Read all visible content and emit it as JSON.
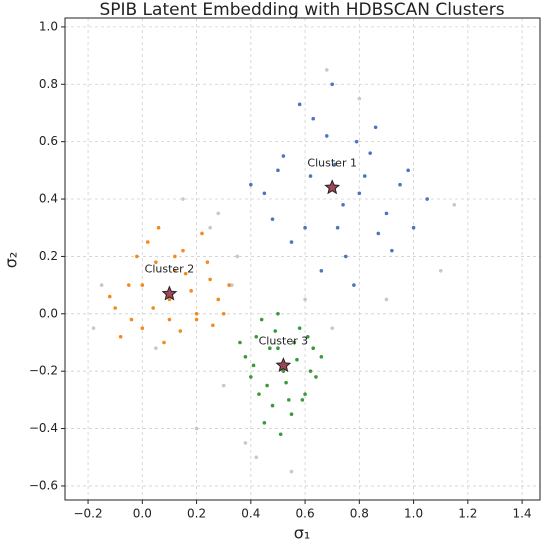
{
  "chart_data": {
    "type": "scatter",
    "title": "SPIB Latent Embedding with HDBSCAN Clusters",
    "xlabel": "σ₁",
    "ylabel": "σ₂",
    "xlim": [
      -0.285,
      1.466
    ],
    "ylim": [
      -0.649,
      1.031
    ],
    "xticks": [
      {
        "value": -0.2,
        "label": "−0.2"
      },
      {
        "value": 0,
        "label": "0.0"
      },
      0.2,
      0.4,
      0.6,
      0.8,
      {
        "value": 1,
        "label": "1.0"
      },
      1.2,
      1.4
    ],
    "yticks": [
      {
        "value": -0.6,
        "label": "−0.6"
      },
      {
        "value": -0.4,
        "label": "−0.4"
      },
      {
        "value": -0.2,
        "label": "−0.2"
      },
      {
        "value": 0,
        "label": "0.0"
      },
      0.2,
      0.4,
      0.6,
      0.8,
      {
        "value": 1,
        "label": "1.0"
      }
    ],
    "grid": true,
    "series": [
      {
        "color": "#c8c8c8",
        "x": [
          -0.15,
          0.35,
          0.3,
          1.1,
          0.25,
          0.7,
          0.2,
          0.9,
          0.38,
          -0.18,
          0.05,
          0.55,
          0.33,
          0.8,
          0.6,
          0.42,
          0.28,
          1.15,
          0.15,
          0.68
        ],
        "y": [
          0.1,
          0.2,
          -0.25,
          0.15,
          0.3,
          -0.05,
          -0.4,
          0.05,
          -0.45,
          -0.05,
          -0.12,
          -0.55,
          0.1,
          0.75,
          0.05,
          -0.5,
          0.35,
          0.38,
          0.4,
          0.85
        ]
      },
      {
        "color": "#4a76c0",
        "x": [
          0.45,
          0.52,
          0.6,
          0.68,
          0.75,
          0.82,
          0.9,
          0.98,
          1.05,
          0.55,
          0.63,
          0.71,
          0.79,
          0.87,
          0.95,
          0.4,
          0.48,
          0.58,
          0.66,
          0.74,
          0.84,
          0.92,
          1.0,
          0.62,
          0.7,
          0.78,
          0.86,
          0.5,
          0.72,
          0.8
        ],
        "y": [
          0.42,
          0.55,
          0.3,
          0.62,
          0.2,
          0.48,
          0.35,
          0.5,
          0.4,
          0.25,
          0.68,
          0.52,
          0.6,
          0.28,
          0.45,
          0.45,
          0.33,
          0.73,
          0.15,
          0.38,
          0.56,
          0.22,
          0.3,
          0.48,
          0.8,
          0.1,
          0.65,
          0.5,
          0.3,
          0.42
        ]
      },
      {
        "color": "#f28a1e",
        "x": [
          -0.1,
          -0.05,
          0.0,
          0.05,
          0.1,
          0.15,
          0.2,
          0.25,
          0.3,
          -0.08,
          0.02,
          0.08,
          0.12,
          0.18,
          0.22,
          0.28,
          -0.02,
          0.04,
          0.14,
          0.24,
          0.06,
          0.16,
          -0.12,
          0.1,
          0.2,
          0.0,
          0.26,
          0.12,
          0.32,
          -0.04
        ],
        "y": [
          0.02,
          0.1,
          -0.05,
          0.18,
          0.05,
          0.22,
          -0.02,
          0.12,
          0.0,
          -0.08,
          0.25,
          -0.1,
          0.15,
          0.08,
          0.28,
          0.05,
          0.2,
          0.02,
          -0.06,
          0.18,
          0.3,
          0.14,
          0.06,
          -0.02,
          0.0,
          0.1,
          -0.04,
          0.2,
          0.1,
          -0.02
        ]
      },
      {
        "color": "#3a9a3a",
        "x": [
          0.38,
          0.42,
          0.46,
          0.5,
          0.54,
          0.58,
          0.62,
          0.66,
          0.4,
          0.44,
          0.48,
          0.52,
          0.56,
          0.6,
          0.64,
          0.36,
          0.45,
          0.55,
          0.5,
          0.47,
          0.53,
          0.57,
          0.43,
          0.61,
          0.51,
          0.49,
          0.59,
          0.41,
          0.63,
          0.52
        ],
        "y": [
          -0.15,
          -0.08,
          -0.25,
          -0.12,
          -0.3,
          -0.05,
          -0.2,
          -0.15,
          -0.22,
          -0.02,
          -0.32,
          -0.18,
          -0.1,
          -0.28,
          -0.22,
          -0.1,
          -0.38,
          -0.35,
          0.0,
          -0.12,
          -0.24,
          -0.16,
          -0.28,
          -0.08,
          -0.42,
          -0.06,
          -0.3,
          -0.18,
          -0.12,
          -0.2
        ]
      },
      {
        "color": "#a0455a",
        "marker": "star",
        "x": [
          0.7,
          0.1,
          0.52
        ],
        "y": [
          0.44,
          0.07,
          -0.18
        ],
        "labels": [
          "Cluster 1",
          "Cluster 2",
          "Cluster 3"
        ]
      }
    ]
  }
}
